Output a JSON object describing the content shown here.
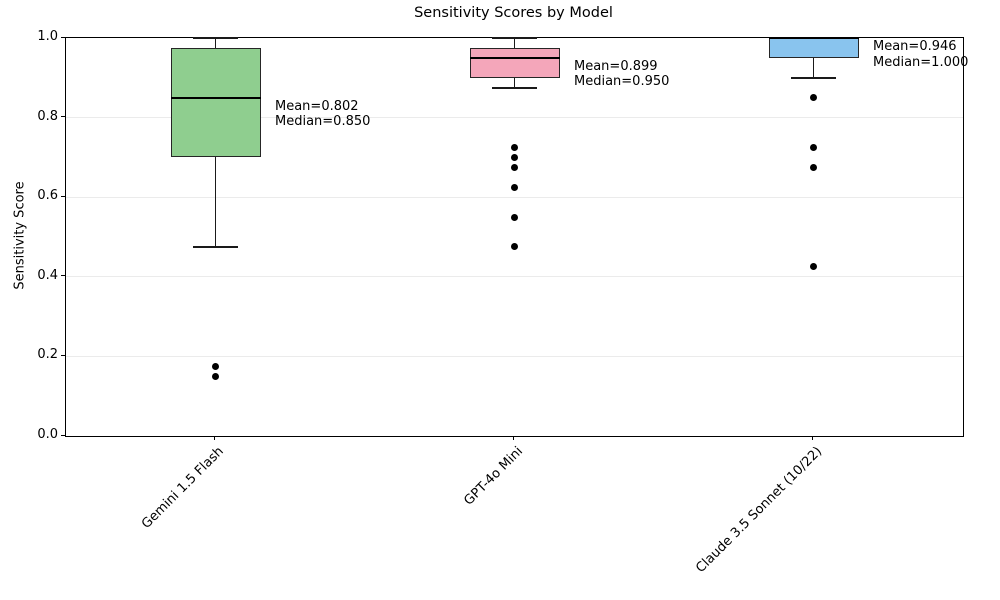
{
  "chart_data": {
    "type": "box",
    "title": "Sensitivity Scores by Model",
    "ylabel": "Sensitivity Score",
    "xlabel": "",
    "ylim": [
      0.0,
      1.0
    ],
    "ytick_labels": [
      "0.0",
      "0.2",
      "0.4",
      "0.6",
      "0.8",
      "1.0"
    ],
    "ytick_values": [
      0.0,
      0.2,
      0.4,
      0.6,
      0.8,
      1.0
    ],
    "grid": "horizontal-light",
    "categories": [
      "Gemini 1.5 Flash",
      "GPT-4o Mini",
      "Claude 3.5 Sonnet (10/22)"
    ],
    "series": [
      {
        "label": "Gemini 1.5 Flash",
        "box_color": "#8fce8f",
        "whisker_low": 0.475,
        "q1": 0.7,
        "median": 0.85,
        "q3": 0.975,
        "whisker_high": 1.0,
        "outliers": [
          0.175,
          0.15
        ],
        "mean": 0.802,
        "annotation_lines": [
          "Mean=0.802",
          "Median=0.850"
        ]
      },
      {
        "label": "GPT-4o Mini",
        "box_color": "#f4a6ba",
        "whisker_low": 0.875,
        "q1": 0.9,
        "median": 0.95,
        "q3": 0.975,
        "whisker_high": 1.0,
        "outliers": [
          0.725,
          0.7,
          0.675,
          0.625,
          0.55,
          0.475
        ],
        "mean": 0.899,
        "annotation_lines": [
          "Mean=0.899",
          "Median=0.950"
        ]
      },
      {
        "label": "Claude 3.5 Sonnet (10/22)",
        "box_color": "#89c4ee",
        "whisker_low": 0.9,
        "q1": 0.95,
        "median": 1.0,
        "q3": 1.0,
        "whisker_high": 1.0,
        "outliers": [
          0.85,
          0.725,
          0.675,
          0.425
        ],
        "mean": 0.946,
        "annotation_lines": [
          "Mean=0.946",
          "Median=1.000"
        ]
      }
    ]
  },
  "colors": {
    "background": "#ffffff",
    "text": "#000000",
    "spine": "#000000",
    "grid": "#ebebeb",
    "box_edge": "#262626",
    "median": "#000000",
    "whisker": "#1a1a1a",
    "outlier": "#000000"
  }
}
